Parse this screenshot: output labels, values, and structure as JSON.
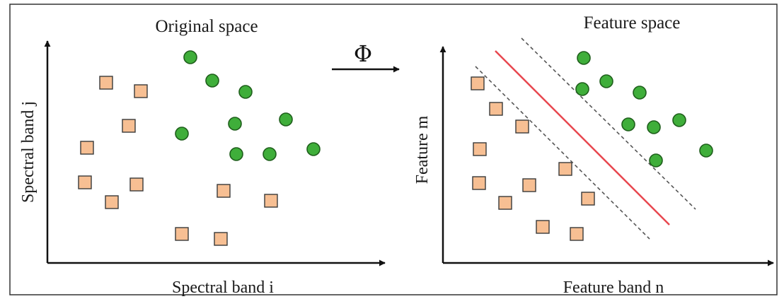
{
  "left_panel": {
    "title": "Original space",
    "x_axis_label": "Spectral band i",
    "y_axis_label": "Spectral band j"
  },
  "right_panel": {
    "title": "Feature space",
    "x_axis_label": "Feature band n",
    "y_axis_label": "Feature m"
  },
  "mapping": {
    "symbol": "Φ"
  },
  "colors": {
    "square_fill": "#f7bf93",
    "square_stroke": "#3a3a3a",
    "circle_fill": "#3fae3a",
    "circle_stroke": "#1f5f1c",
    "hyperplane": "#e8474f",
    "margin": "#555555",
    "frame": "#333333"
  }
}
